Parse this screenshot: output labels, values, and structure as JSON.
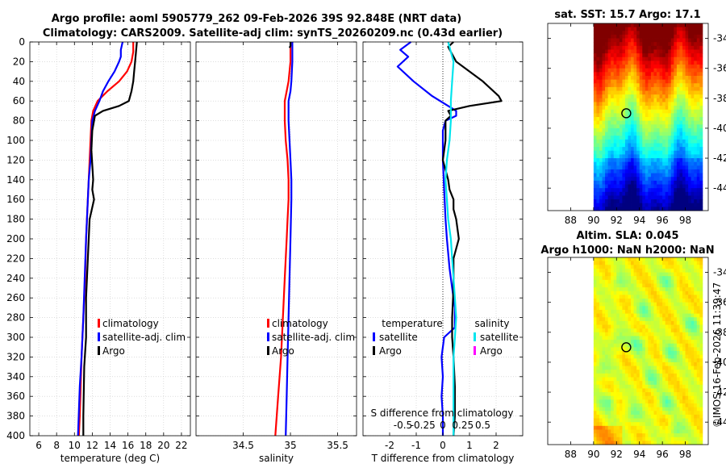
{
  "figure": {
    "title_line1": "Argo profile: aoml 5905779_262 09-Feb-2026 39S 92.848E (NRT data)",
    "title_line2": "Climatology: CARS2009. Satellite-adj clim: synTS_20260209.nc (0.43d earlier)",
    "watermark": "©IMOS 16-Feb-2026 11:39:47"
  },
  "colors": {
    "climatology": "#ff0000",
    "satellite": "#0000ff",
    "argo": "#000000",
    "sat_salinity": "#00e5ee",
    "argo_salinity": "#ff00ff"
  },
  "chart_data": [
    {
      "type": "line",
      "id": "temperature",
      "xlabel": "temperature (deg C)",
      "ylabel": "",
      "xlim": [
        5,
        23
      ],
      "ylim": [
        400,
        0
      ],
      "xticks": [
        "6",
        "8",
        "10",
        "12",
        "14",
        "16",
        "18",
        "20",
        "22"
      ],
      "xtick_values": [
        6,
        8,
        10,
        12,
        14,
        16,
        18,
        20,
        22
      ],
      "yticks": [
        "0",
        "20",
        "40",
        "60",
        "80",
        "100",
        "120",
        "140",
        "160",
        "180",
        "200",
        "220",
        "240",
        "260",
        "280",
        "300",
        "320",
        "340",
        "360",
        "380",
        "400"
      ],
      "ytick_values": [
        0,
        20,
        40,
        60,
        80,
        100,
        120,
        140,
        160,
        180,
        200,
        220,
        240,
        260,
        280,
        300,
        320,
        340,
        360,
        380,
        400
      ],
      "grid": true,
      "legend": [
        "climatology",
        "satellite-adj. clim",
        "Argo"
      ],
      "series": [
        {
          "name": "climatology",
          "color": "#ff0000",
          "x": [
            16.6,
            16.6,
            16.4,
            15.9,
            15.0,
            13.7,
            12.6,
            12.1,
            11.9,
            11.8,
            11.7,
            11.6,
            11.5,
            11.4,
            11.3,
            11.2,
            11.0,
            10.9,
            10.8,
            10.7,
            10.6,
            10.5
          ],
          "y": [
            0,
            10,
            20,
            30,
            40,
            50,
            60,
            70,
            80,
            100,
            120,
            140,
            160,
            180,
            200,
            240,
            280,
            300,
            320,
            350,
            380,
            400
          ]
        },
        {
          "name": "satellite-adj. clim",
          "color": "#0000ff",
          "x": [
            15.4,
            15.2,
            15.2,
            15.0,
            14.5,
            13.8,
            13.2,
            12.8,
            12.3,
            12.0,
            11.9,
            11.8,
            11.6,
            11.5,
            11.4,
            11.3,
            11.0,
            10.9,
            10.8,
            10.6,
            10.4
          ],
          "y": [
            0,
            8,
            15,
            20,
            30,
            40,
            50,
            60,
            70,
            80,
            100,
            120,
            140,
            160,
            180,
            200,
            280,
            300,
            320,
            350,
            400
          ]
        },
        {
          "name": "Argo",
          "color": "#000000",
          "x": [
            17.0,
            16.9,
            16.8,
            16.7,
            16.6,
            16.4,
            16.1,
            15.0,
            13.2,
            12.3,
            12.0,
            11.9,
            12.0,
            12.1,
            12.0,
            12.2,
            11.7,
            11.5,
            11.3,
            11.3,
            11.1,
            11.0,
            11.0
          ],
          "y": [
            0,
            10,
            20,
            30,
            40,
            50,
            60,
            65,
            70,
            75,
            90,
            110,
            125,
            140,
            150,
            160,
            180,
            220,
            260,
            300,
            330,
            380,
            400
          ]
        }
      ]
    },
    {
      "type": "line",
      "id": "salinity",
      "xlabel": "salinity",
      "ylabel": "",
      "xlim": [
        34.0,
        35.7
      ],
      "ylim": [
        400,
        0
      ],
      "xticks": [
        "34.5",
        "35",
        "35.5"
      ],
      "xtick_values": [
        34.5,
        35,
        35.5
      ],
      "grid": true,
      "legend": [
        "climatology",
        "satellite-adj. clim",
        "Argo"
      ],
      "series": [
        {
          "name": "climatology",
          "color": "#ff0000",
          "x": [
            35.0,
            35.0,
            34.98,
            34.96,
            34.94,
            34.94,
            34.95,
            34.97,
            34.98,
            34.98,
            34.97,
            34.96,
            34.94,
            34.92,
            34.9,
            34.87,
            34.84
          ],
          "y": [
            0,
            20,
            40,
            50,
            60,
            80,
            100,
            120,
            140,
            160,
            180,
            200,
            240,
            280,
            320,
            360,
            400
          ]
        },
        {
          "name": "satellite-adj. clim",
          "color": "#0000ff",
          "x": [
            35.02,
            35.02,
            35.01,
            35.0,
            34.98,
            34.98,
            34.99,
            35.0,
            35.01,
            35.01,
            35.0,
            34.99,
            34.98,
            34.97,
            34.96,
            34.95
          ],
          "y": [
            0,
            20,
            40,
            50,
            60,
            80,
            100,
            120,
            140,
            160,
            200,
            240,
            280,
            320,
            360,
            400
          ]
        },
        {
          "name": "Argo",
          "color": "#000000",
          "x": [
            35.0,
            35.0,
            35.0,
            34.99
          ],
          "y": [
            0,
            2,
            4,
            6
          ]
        }
      ]
    },
    {
      "type": "line",
      "id": "differences",
      "xlabel": "T difference from climatology",
      "xlabel_top": "S difference from climatology",
      "xlim": [
        -3,
        3
      ],
      "ylim": [
        400,
        0
      ],
      "xticks": [
        "-2",
        "-1",
        "0",
        "1",
        "2"
      ],
      "xtick_values": [
        -2,
        -1,
        0,
        1,
        2
      ],
      "top_xticks": [
        "-0.5",
        "-0.25",
        "0",
        "0.25",
        "0.5"
      ],
      "top_xtick_values": [
        -1.5,
        -0.75,
        0,
        0.75,
        1.5
      ],
      "grid": true,
      "legend_headers": [
        "temperature",
        "salinity"
      ],
      "legend": [
        "satellite",
        "Argo",
        "satellite",
        "Argo"
      ],
      "series": [
        {
          "name": "T satellite",
          "color": "#0000ff",
          "x": [
            -1.2,
            -1.6,
            -1.3,
            -1.7,
            -1.1,
            -0.4,
            0.2,
            0.5,
            0.5,
            0.1,
            0.0,
            0.0,
            0.0,
            0.05,
            0.1,
            0.15,
            0.25,
            0.35,
            0.45,
            0.45,
            0.05,
            -0.05,
            0.0,
            -0.05,
            0.0,
            0.0,
            0.0
          ],
          "y": [
            0,
            8,
            15,
            25,
            40,
            55,
            65,
            70,
            75,
            80,
            90,
            100,
            120,
            150,
            180,
            200,
            230,
            250,
            270,
            290,
            300,
            320,
            340,
            360,
            380,
            395,
            400
          ]
        },
        {
          "name": "T Argo",
          "color": "#000000",
          "x": [
            0.4,
            0.2,
            0.5,
            1.5,
            2.1,
            2.2,
            1.0,
            0.2,
            0.3,
            0.1,
            0.1,
            0.0,
            0.1,
            0.2,
            0.25,
            0.4,
            0.4,
            0.5,
            0.6,
            0.4,
            0.4,
            0.35,
            0.35,
            0.4,
            0.45,
            0.45,
            0.4
          ],
          "y": [
            0,
            5,
            20,
            40,
            55,
            60,
            65,
            70,
            75,
            80,
            100,
            120,
            130,
            140,
            150,
            160,
            170,
            180,
            200,
            220,
            250,
            280,
            300,
            320,
            350,
            380,
            400
          ]
        },
        {
          "name": "S satellite",
          "color": "#00e5ee",
          "x": [
            0.2,
            0.4,
            0.35,
            0.3,
            0.3,
            0.25,
            0.15,
            0.1,
            0.15,
            0.2,
            0.3,
            0.35,
            0.4,
            0.45,
            0.5,
            0.45,
            0.4,
            0.4,
            0.4
          ],
          "y": [
            0,
            20,
            40,
            60,
            80,
            100,
            120,
            140,
            160,
            180,
            200,
            220,
            240,
            260,
            280,
            300,
            320,
            360,
            400
          ]
        },
        {
          "name": "S Argo",
          "color": "#ff00ff",
          "x": [],
          "y": []
        }
      ]
    },
    {
      "type": "heatmap",
      "id": "sst_map",
      "title": "sat. SST: 15.7 Argo: 17.1",
      "xlim": [
        86,
        100
      ],
      "ylim": [
        -45.5,
        -33.0
      ],
      "xticks": [
        "88",
        "90",
        "92",
        "94",
        "96",
        "98"
      ],
      "xtick_values": [
        88,
        90,
        92,
        94,
        96,
        98
      ],
      "yticks": [
        "-34",
        "-36",
        "-38",
        "-40",
        "-42",
        "-44"
      ],
      "ytick_values": [
        -34,
        -36,
        -38,
        -40,
        -42,
        -44
      ],
      "data_extent": [
        90,
        99.5,
        -45.5,
        -33.0
      ],
      "marker": {
        "lon": 92.85,
        "lat": -39.0
      }
    },
    {
      "type": "heatmap",
      "id": "sla_map",
      "title_line1": "Altim. SLA: 0.045",
      "title_line2": "Argo h1000: NaN h2000: NaN",
      "xlim": [
        86,
        100
      ],
      "ylim": [
        -45.5,
        -33.0
      ],
      "xticks": [
        "88",
        "90",
        "92",
        "94",
        "96",
        "98"
      ],
      "xtick_values": [
        88,
        90,
        92,
        94,
        96,
        98
      ],
      "yticks": [
        "-34",
        "-36",
        "-38",
        "-40",
        "-42",
        "-44"
      ],
      "ytick_values": [
        -34,
        -36,
        -38,
        -40,
        -42,
        -44
      ],
      "data_extent": [
        90,
        99.5,
        -45.5,
        -33.0
      ],
      "marker": {
        "lon": 92.85,
        "lat": -39.0
      }
    }
  ]
}
